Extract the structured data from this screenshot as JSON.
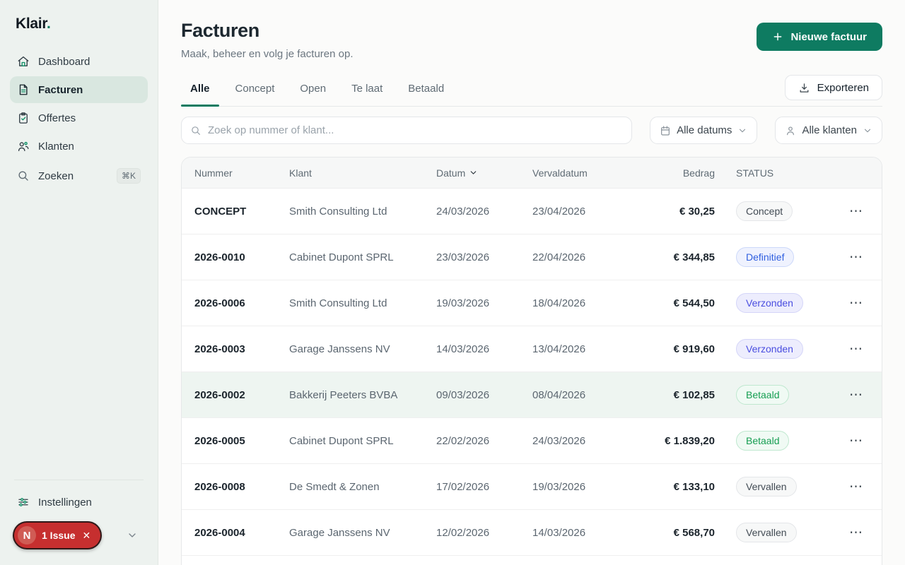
{
  "sidebar": {
    "logo_text": "Klair",
    "logo_dot": ".",
    "items": [
      {
        "label": "Dashboard",
        "icon": "home-icon",
        "active": false
      },
      {
        "label": "Facturen",
        "icon": "file-text-icon",
        "active": true
      },
      {
        "label": "Offertes",
        "icon": "clipboard-check-icon",
        "active": false
      },
      {
        "label": "Klanten",
        "icon": "users-icon",
        "active": false
      },
      {
        "label": "Zoeken",
        "icon": "search-icon",
        "active": false,
        "shortcut": "⌘K"
      }
    ],
    "footer": {
      "settings_label": "Instellingen",
      "settings_icon": "sliders-icon",
      "issue_badge": {
        "logo_letter": "N",
        "label": "1 Issue",
        "close_icon": "✕"
      }
    }
  },
  "header": {
    "title": "Facturen",
    "subtitle": "Maak, beheer en volg je facturen op.",
    "new_button": {
      "label": "Nieuwe factuur",
      "icon": "plus-icon"
    },
    "export_button": {
      "label": "Exporteren",
      "icon": "download-icon"
    }
  },
  "tabs": [
    {
      "label": "Alle",
      "active": true
    },
    {
      "label": "Concept",
      "active": false
    },
    {
      "label": "Open",
      "active": false
    },
    {
      "label": "Te laat",
      "active": false
    },
    {
      "label": "Betaald",
      "active": false
    }
  ],
  "filters": {
    "search_placeholder": "Zoek op nummer of klant...",
    "date_filter": {
      "label": "Alle datums",
      "icon": "calendar-icon"
    },
    "client_filter": {
      "label": "Alle klanten",
      "icon": "person-icon"
    }
  },
  "table": {
    "columns": {
      "nummer": "Nummer",
      "klant": "Klant",
      "datum": "Datum",
      "vervaldatum": "Vervaldatum",
      "bedrag": "Bedrag",
      "status": "STATUS"
    },
    "sorted_column": "Datum",
    "rows": [
      {
        "nummer": "CONCEPT",
        "klant": "Smith Consulting Ltd",
        "datum": "24/03/2026",
        "vervaldatum": "23/04/2026",
        "bedrag": "€ 30,25",
        "status": "Concept",
        "status_type": "concept",
        "highlighted": false
      },
      {
        "nummer": "2026-0010",
        "klant": "Cabinet Dupont SPRL",
        "datum": "23/03/2026",
        "vervaldatum": "22/04/2026",
        "bedrag": "€ 344,85",
        "status": "Definitief",
        "status_type": "definitief",
        "highlighted": false
      },
      {
        "nummer": "2026-0006",
        "klant": "Smith Consulting Ltd",
        "datum": "19/03/2026",
        "vervaldatum": "18/04/2026",
        "bedrag": "€ 544,50",
        "status": "Verzonden",
        "status_type": "verzonden",
        "highlighted": false
      },
      {
        "nummer": "2026-0003",
        "klant": "Garage Janssens NV",
        "datum": "14/03/2026",
        "vervaldatum": "13/04/2026",
        "bedrag": "€ 919,60",
        "status": "Verzonden",
        "status_type": "verzonden",
        "highlighted": false
      },
      {
        "nummer": "2026-0002",
        "klant": "Bakkerij Peeters BVBA",
        "datum": "09/03/2026",
        "vervaldatum": "08/04/2026",
        "bedrag": "€ 102,85",
        "status": "Betaald",
        "status_type": "betaald",
        "highlighted": true
      },
      {
        "nummer": "2026-0005",
        "klant": "Cabinet Dupont SPRL",
        "datum": "22/02/2026",
        "vervaldatum": "24/03/2026",
        "bedrag": "€ 1.839,20",
        "status": "Betaald",
        "status_type": "betaald",
        "highlighted": false
      },
      {
        "nummer": "2026-0008",
        "klant": "De Smedt & Zonen",
        "datum": "17/02/2026",
        "vervaldatum": "19/03/2026",
        "bedrag": "€ 133,10",
        "status": "Vervallen",
        "status_type": "vervallen",
        "highlighted": false
      },
      {
        "nummer": "2026-0004",
        "klant": "Garage Janssens NV",
        "datum": "12/02/2026",
        "vervaldatum": "14/03/2026",
        "bedrag": "€ 568,70",
        "status": "Vervallen",
        "status_type": "vervallen",
        "highlighted": false
      }
    ]
  },
  "colors": {
    "accent_teal": "#0e7b61",
    "sidebar_bg": "#edf2ef",
    "active_item_bg": "#d9e7e0",
    "issue_red": "#c62f2f",
    "badge_blue": "#2f5fe0",
    "badge_indigo": "#4a4ee0",
    "badge_green": "#169e52",
    "row_highlight": "#eef5f1"
  }
}
